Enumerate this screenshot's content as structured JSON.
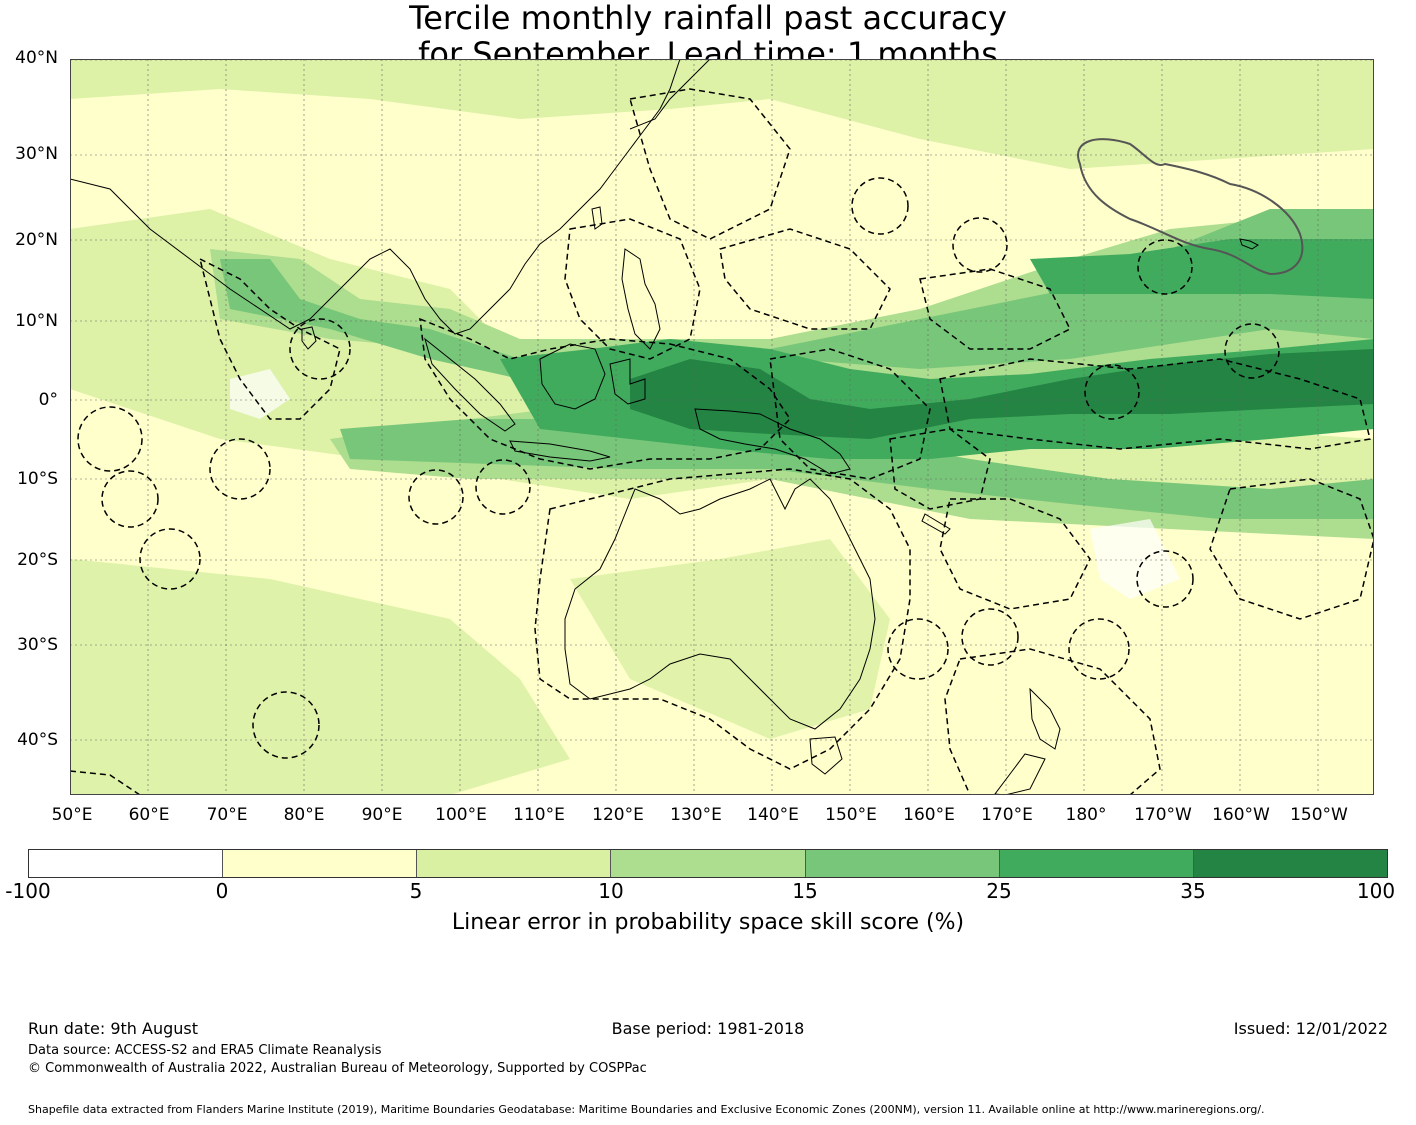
{
  "title": {
    "line1": "Tercile monthly rainfall past accuracy",
    "line2": "for September. Lead time: 1 months"
  },
  "map": {
    "lat_labels": [
      "40°N",
      "30°N",
      "20°N",
      "10°N",
      "0°",
      "10°S",
      "20°S",
      "30°S",
      "40°S"
    ],
    "lon_labels": [
      "50°E",
      "60°E",
      "70°E",
      "80°E",
      "90°E",
      "100°E",
      "110°E",
      "120°E",
      "130°E",
      "140°E",
      "150°E",
      "160°E",
      "170°E",
      "180°",
      "170°W",
      "160°W",
      "150°W"
    ],
    "lat_range": [
      -46,
      40
    ],
    "lon_range": [
      50,
      217
    ],
    "gridlines": true,
    "coastlines": true,
    "eez_boundaries": "dashed"
  },
  "colorbar": {
    "ticks": [
      "-100",
      "0",
      "5",
      "10",
      "15",
      "25",
      "35",
      "100"
    ],
    "colors": [
      "#ffffff",
      "#ffffcc",
      "#d9f0a3",
      "#addd8e",
      "#78c679",
      "#41ab5d",
      "#238443"
    ],
    "label": "Linear error in probability space skill score (%)"
  },
  "footer": {
    "run_date": "Run date: 9th August",
    "base_period": "Base period: 1981-2018",
    "issued": "Issued: 12/01/2022",
    "data_source": "Data source: ACCESS-S2 and ERA5 Climate Reanalysis",
    "copyright": "© Commonwealth of Australia 2022, Australian Bureau of Meteorology, Supported by COSPPac",
    "shapefile": "Shapefile data extracted from Flanders Marine Institute (2019), Maritime Boundaries Geodatabase: Maritime Boundaries and Exclusive Economic Zones (200NM), version 11. Available online at http://www.marineregions.org/."
  }
}
